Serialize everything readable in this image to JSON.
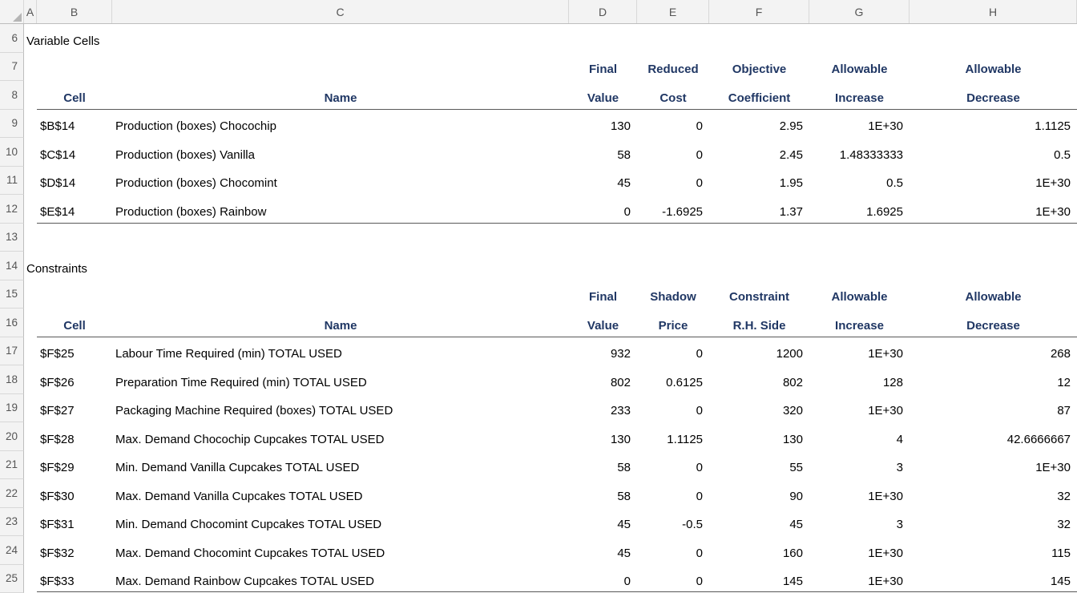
{
  "colors": {
    "header_text": "#203764",
    "table_border": "#595959",
    "grid_header_bg": "#F3F3F3"
  },
  "grid": {
    "column_letters": [
      "A",
      "B",
      "C",
      "D",
      "E",
      "F",
      "G",
      "H"
    ]
  },
  "sections": {
    "variable_cells": {
      "row_num_title": "6",
      "title": "Variable Cells",
      "header1": {
        "row_num": "7",
        "final": "Final",
        "reduced": "Reduced",
        "objective": "Objective",
        "allow_inc": "Allowable",
        "allow_dec": "Allowable"
      },
      "header2": {
        "row_num": "8",
        "cell": "Cell",
        "name": "Name",
        "value": "Value",
        "cost": "Cost",
        "coefficient": "Coefficient",
        "increase": "Increase",
        "decrease": "Decrease"
      },
      "rows": [
        {
          "row_num": "9",
          "cell": "$B$14",
          "name": "Production (boxes) Chocochip",
          "final_value": "130",
          "reduced_cost": "0",
          "objective_coefficient": "2.95",
          "allowable_increase": "1E+30",
          "allowable_decrease": "1.1125"
        },
        {
          "row_num": "10",
          "cell": "$C$14",
          "name": "Production (boxes) Vanilla",
          "final_value": "58",
          "reduced_cost": "0",
          "objective_coefficient": "2.45",
          "allowable_increase": "1.48333333",
          "allowable_decrease": "0.5"
        },
        {
          "row_num": "11",
          "cell": "$D$14",
          "name": "Production (boxes) Chocomint",
          "final_value": "45",
          "reduced_cost": "0",
          "objective_coefficient": "1.95",
          "allowable_increase": "0.5",
          "allowable_decrease": "1E+30"
        },
        {
          "row_num": "12",
          "cell": "$E$14",
          "name": "Production (boxes) Rainbow",
          "final_value": "0",
          "reduced_cost": "-1.6925",
          "objective_coefficient": "1.37",
          "allowable_increase": "1.6925",
          "allowable_decrease": "1E+30"
        }
      ]
    },
    "spacer": {
      "row_num": "13"
    },
    "constraints": {
      "row_num_title": "14",
      "title": "Constraints",
      "header1": {
        "row_num": "15",
        "final": "Final",
        "shadow": "Shadow",
        "constraint": "Constraint",
        "allow_inc": "Allowable",
        "allow_dec": "Allowable"
      },
      "header2": {
        "row_num": "16",
        "cell": "Cell",
        "name": "Name",
        "value": "Value",
        "price": "Price",
        "rhs": "R.H. Side",
        "increase": "Increase",
        "decrease": "Decrease"
      },
      "rows": [
        {
          "row_num": "17",
          "cell": "$F$25",
          "name": "Labour Time Required (min) TOTAL USED",
          "final_value": "932",
          "shadow_price": "0",
          "constraint_rhs": "1200",
          "allowable_increase": "1E+30",
          "allowable_decrease": "268"
        },
        {
          "row_num": "18",
          "cell": "$F$26",
          "name": "Preparation Time Required (min) TOTAL USED",
          "final_value": "802",
          "shadow_price": "0.6125",
          "constraint_rhs": "802",
          "allowable_increase": "128",
          "allowable_decrease": "12"
        },
        {
          "row_num": "19",
          "cell": "$F$27",
          "name": "Packaging Machine Required (boxes) TOTAL USED",
          "final_value": "233",
          "shadow_price": "0",
          "constraint_rhs": "320",
          "allowable_increase": "1E+30",
          "allowable_decrease": "87"
        },
        {
          "row_num": "20",
          "cell": "$F$28",
          "name": "Max. Demand Chocochip Cupcakes TOTAL USED",
          "final_value": "130",
          "shadow_price": "1.1125",
          "constraint_rhs": "130",
          "allowable_increase": "4",
          "allowable_decrease": "42.6666667"
        },
        {
          "row_num": "21",
          "cell": "$F$29",
          "name": "Min. Demand Vanilla Cupcakes TOTAL USED",
          "final_value": "58",
          "shadow_price": "0",
          "constraint_rhs": "55",
          "allowable_increase": "3",
          "allowable_decrease": "1E+30"
        },
        {
          "row_num": "22",
          "cell": "$F$30",
          "name": "Max. Demand Vanilla Cupcakes TOTAL USED",
          "final_value": "58",
          "shadow_price": "0",
          "constraint_rhs": "90",
          "allowable_increase": "1E+30",
          "allowable_decrease": "32"
        },
        {
          "row_num": "23",
          "cell": "$F$31",
          "name": "Min. Demand Chocomint Cupcakes TOTAL USED",
          "final_value": "45",
          "shadow_price": "-0.5",
          "constraint_rhs": "45",
          "allowable_increase": "3",
          "allowable_decrease": "32"
        },
        {
          "row_num": "24",
          "cell": "$F$32",
          "name": "Max. Demand Chocomint Cupcakes TOTAL USED",
          "final_value": "45",
          "shadow_price": "0",
          "constraint_rhs": "160",
          "allowable_increase": "1E+30",
          "allowable_decrease": "115"
        },
        {
          "row_num": "25",
          "cell": "$F$33",
          "name": "Max. Demand Rainbow Cupcakes TOTAL USED",
          "final_value": "0",
          "shadow_price": "0",
          "constraint_rhs": "145",
          "allowable_increase": "1E+30",
          "allowable_decrease": "145"
        }
      ]
    }
  }
}
